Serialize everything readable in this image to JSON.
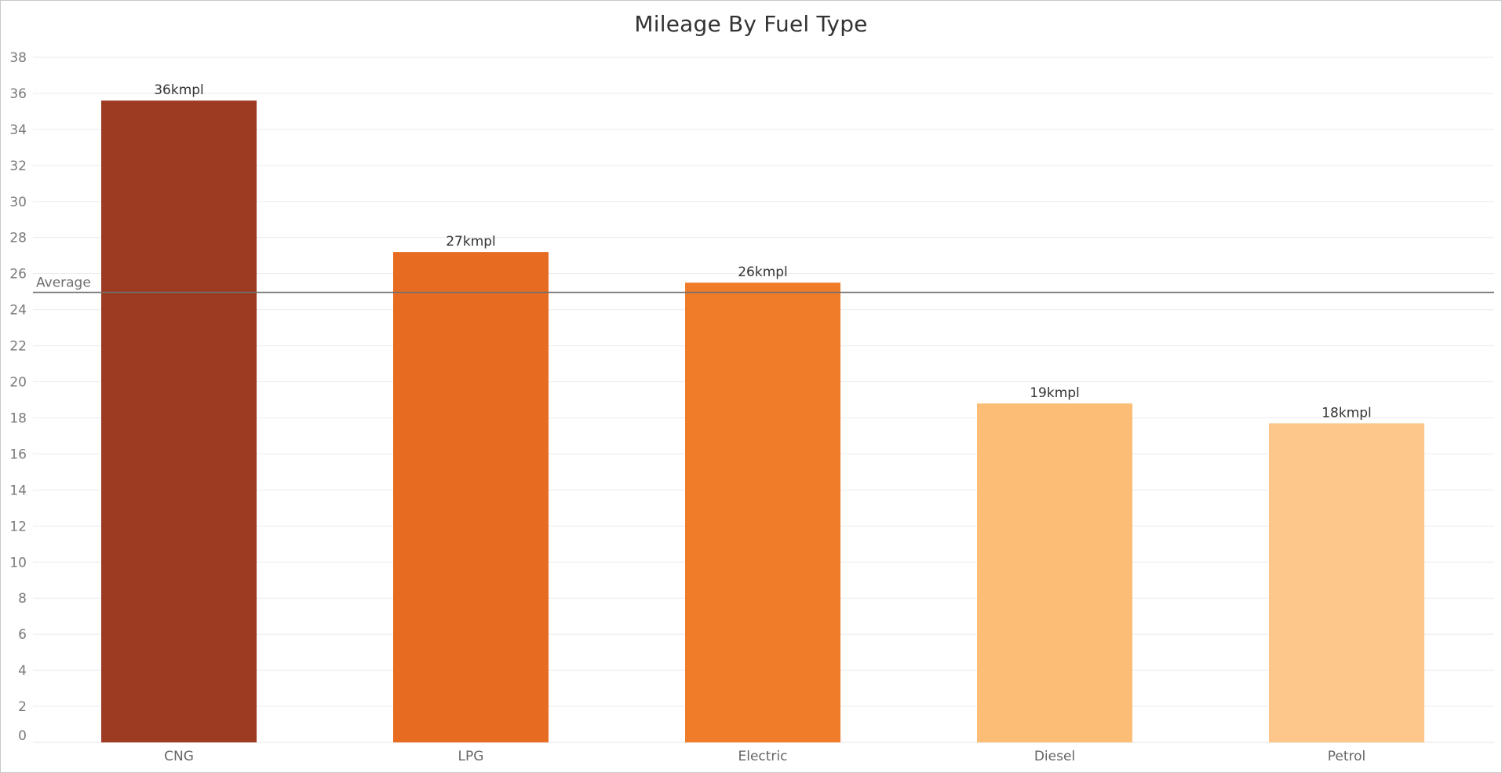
{
  "chart_data": {
    "type": "bar",
    "title": "Mileage By Fuel Type",
    "xlabel": "",
    "ylabel": "",
    "categories": [
      "CNG",
      "LPG",
      "Electric",
      "Diesel",
      "Petrol"
    ],
    "values": [
      35.6,
      27.2,
      25.5,
      18.8,
      17.7
    ],
    "data_labels": [
      "36kmpl",
      "27kmpl",
      "26kmpl",
      "19kmpl",
      "18kmpl"
    ],
    "colors": [
      "#9c3b21",
      "#e86b22",
      "#f07b28",
      "#fcbe76",
      "#fdc68a"
    ],
    "ylim": [
      0,
      38
    ],
    "yticks": [
      0,
      2,
      4,
      6,
      8,
      10,
      12,
      14,
      16,
      18,
      20,
      22,
      24,
      26,
      28,
      30,
      32,
      34,
      36,
      38
    ],
    "grid": true,
    "reference_line": {
      "label": "Average",
      "value": 24.96,
      "color": "#707070"
    }
  }
}
